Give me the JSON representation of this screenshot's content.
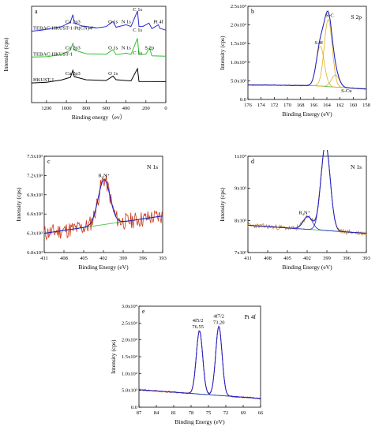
{
  "chart_data": [
    {
      "id": "a",
      "type": "line",
      "corner_label": "a",
      "xlabel": "Binding energy（ev）",
      "ylabel": "Intensity (cps)",
      "xlim": [
        1350,
        0
      ],
      "x_ticks": [
        "1200",
        "1000",
        "800",
        "600",
        "400",
        "200",
        "0"
      ],
      "series": [
        {
          "name": "TEBAC-HKUST-1-Pt(CN)4²⁻",
          "color": "#2a2ad8",
          "points": [
            [
              1350,
              20
            ],
            [
              1250,
              19
            ],
            [
              1150,
              18
            ],
            [
              1050,
              16
            ],
            [
              960,
              11
            ],
            [
              935,
              4
            ],
            [
              920,
              12
            ],
            [
              850,
              15
            ],
            [
              700,
              17
            ],
            [
              600,
              16
            ],
            [
              531,
              11
            ],
            [
              500,
              16
            ],
            [
              399,
              14
            ],
            [
              350,
              16
            ],
            [
              285,
              0
            ],
            [
              270,
              16
            ],
            [
              230,
              16
            ],
            [
              170,
              12
            ],
            [
              140,
              18
            ],
            [
              75,
              14
            ],
            [
              60,
              18
            ],
            [
              0,
              19
            ]
          ],
          "labels": [
            "Cu 2p3",
            "O 1s",
            "N 1s",
            "C 1s",
            "Pt 4f"
          ]
        },
        {
          "name": "TEBAC-HKUST-1",
          "color": "#30c030",
          "points": [
            [
              1350,
              47
            ],
            [
              1200,
              46
            ],
            [
              1050,
              44
            ],
            [
              960,
              40
            ],
            [
              935,
              33
            ],
            [
              920,
              40
            ],
            [
              800,
              43
            ],
            [
              600,
              44
            ],
            [
              531,
              39
            ],
            [
              500,
              44
            ],
            [
              399,
              43
            ],
            [
              350,
              44
            ],
            [
              285,
              28
            ],
            [
              270,
              44
            ],
            [
              200,
              44
            ],
            [
              165,
              37
            ],
            [
              140,
              45
            ],
            [
              0,
              46
            ]
          ],
          "labels": [
            "Cu 2p3",
            "O 1s",
            "N 1s",
            "C 1s",
            "S 2p"
          ]
        },
        {
          "name": "HKUST-1",
          "color": "#000000",
          "points": [
            [
              1350,
              73
            ],
            [
              1200,
              72
            ],
            [
              1050,
              70
            ],
            [
              960,
              67
            ],
            [
              935,
              60
            ],
            [
              920,
              67
            ],
            [
              800,
              70
            ],
            [
              600,
              70
            ],
            [
              531,
              66
            ],
            [
              500,
              70
            ],
            [
              350,
              71
            ],
            [
              285,
              58
            ],
            [
              270,
              71
            ],
            [
              0,
              72
            ]
          ],
          "labels": [
            "Cu 2p3",
            "O 1s",
            "C 1s"
          ]
        }
      ]
    },
    {
      "id": "b",
      "type": "line",
      "corner_label": "b",
      "title": "S 2p",
      "xlabel": "Binding Energy (eV)",
      "ylabel": "Intensity (cps)",
      "xlim": [
        176,
        158
      ],
      "ylim": [
        0,
        27000
      ],
      "x_ticks": [
        "176",
        "174",
        "172",
        "170",
        "168",
        "166",
        "164",
        "162",
        "160",
        "158"
      ],
      "y_ticks": [
        "0.0",
        "5.0x10³",
        "1.0x10⁴",
        "1.5x10⁴",
        "2.0x10⁴",
        "2.5x10⁴"
      ],
      "peaks": [
        {
          "label": "S-H",
          "center": 165.0,
          "height": 11500
        },
        {
          "label": "S-C",
          "center": 163.8,
          "height": 19500
        },
        {
          "label": "S-Cu",
          "center": 162.7,
          "height": 3500
        }
      ],
      "background": [
        [
          176,
          4200
        ],
        [
          170,
          4100
        ],
        [
          166,
          4000
        ],
        [
          158,
          3000
        ]
      ]
    },
    {
      "id": "c",
      "type": "line",
      "corner_label": "c",
      "title": "N 1s",
      "xlabel": "Binding Energy (eV)",
      "ylabel": "Intensity (cps)",
      "xlim": [
        411,
        393
      ],
      "ylim": [
        6000,
        7500
      ],
      "x_ticks": [
        "411",
        "408",
        "405",
        "402",
        "399",
        "396",
        "393"
      ],
      "y_ticks": [
        "6.0x10³",
        "6.3x10³",
        "6.6x10³",
        "6.9x10³",
        "7.2x10³",
        "7.5x10³"
      ],
      "peaks": [
        {
          "label": "R₄N⁺",
          "center": 401.9,
          "height": 700
        }
      ],
      "background": [
        [
          411,
          6300
        ],
        [
          393,
          6570
        ]
      ]
    },
    {
      "id": "d",
      "type": "line",
      "corner_label": "d",
      "title": "N 1s",
      "xlabel": "Binding Energy (eV)",
      "ylabel": "Intensity (cps)",
      "xlim": [
        411,
        393
      ],
      "ylim": [
        7000,
        10000
      ],
      "x_ticks": [
        "411",
        "408",
        "405",
        "402",
        "399",
        "396",
        "393"
      ],
      "y_ticks": [
        "7x10³",
        "8x10³",
        "9x10³",
        "1x10⁴"
      ],
      "peaks": [
        {
          "label": "R₄N⁺",
          "center": 401.9,
          "height": 400
        },
        {
          "label": "CN⁻",
          "center": 399.2,
          "height": 2700
        }
      ],
      "background": [
        [
          411,
          7850
        ],
        [
          393,
          7600
        ]
      ]
    },
    {
      "id": "e",
      "type": "line",
      "corner_label": "e",
      "title": "Pt 4f",
      "xlabel": "Binding Energy (eV)",
      "ylabel": "Intensity (cps)",
      "xlim": [
        87,
        66
      ],
      "ylim": [
        0,
        30000
      ],
      "x_ticks": [
        "87",
        "84",
        "81",
        "78",
        "75",
        "72",
        "69",
        "66"
      ],
      "y_ticks": [
        "0.0",
        "5.0x10³",
        "1.0x10⁴",
        "1.5x10⁴",
        "2.0x10⁴",
        "2.5x10⁴",
        "3.0x10⁴"
      ],
      "peaks": [
        {
          "label": "4f5/2",
          "value_label": "76.55",
          "center": 76.55,
          "height": 18800
        },
        {
          "label": "4f7/2",
          "value_label": "73.20",
          "center": 73.2,
          "height": 20500
        }
      ],
      "background": [
        [
          87,
          5200
        ],
        [
          66,
          2600
        ]
      ]
    }
  ]
}
